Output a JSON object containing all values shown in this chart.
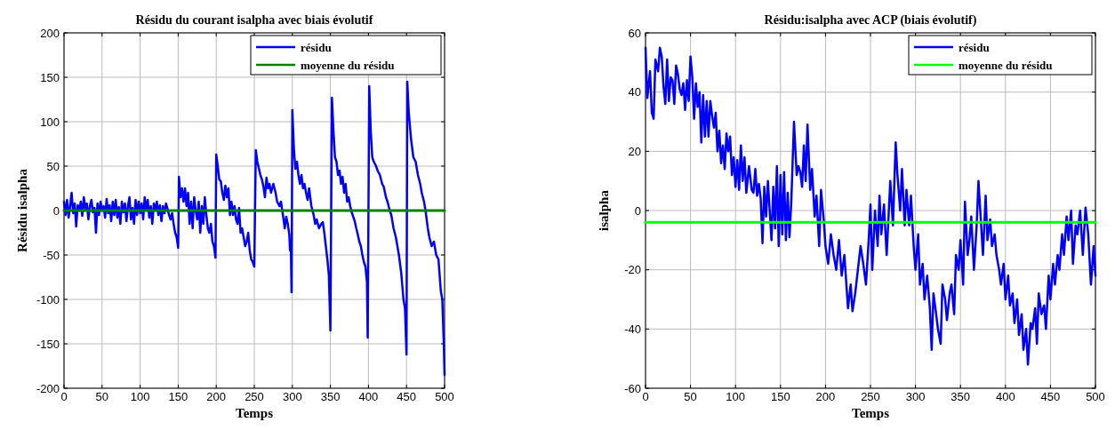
{
  "chart_data": [
    {
      "type": "line",
      "title": "Résidu du courant isalpha avec biais évolutif",
      "xlabel": "Temps",
      "ylabel": "Résidu isalpha",
      "xlim": [
        0,
        500
      ],
      "ylim": [
        -200,
        200
      ],
      "xticks": [
        0,
        50,
        100,
        150,
        200,
        250,
        300,
        350,
        400,
        450,
        500
      ],
      "yticks": [
        -200,
        -150,
        -100,
        -50,
        0,
        50,
        100,
        150,
        200
      ],
      "grid": true,
      "legend": "top right",
      "line_style": "solid",
      "series": [
        {
          "name": "résidu",
          "color": "#0000ff",
          "x": [
            0,
            2,
            4,
            6,
            8,
            10,
            12,
            14,
            16,
            18,
            20,
            22,
            24,
            26,
            28,
            30,
            32,
            34,
            36,
            38,
            40,
            42,
            44,
            46,
            48,
            50,
            52,
            54,
            56,
            58,
            60,
            62,
            64,
            66,
            68,
            70,
            72,
            74,
            76,
            78,
            80,
            82,
            84,
            86,
            88,
            90,
            92,
            94,
            96,
            98,
            100,
            102,
            104,
            106,
            108,
            110,
            112,
            114,
            116,
            118,
            120,
            122,
            124,
            126,
            128,
            130,
            132,
            134,
            136,
            138,
            140,
            142,
            144,
            146,
            148,
            150,
            151,
            153,
            155,
            157,
            159,
            161,
            163,
            165,
            167,
            169,
            171,
            173,
            175,
            177,
            179,
            181,
            183,
            185,
            187,
            189,
            191,
            193,
            195,
            197,
            199,
            200,
            202,
            204,
            206,
            208,
            210,
            212,
            214,
            216,
            218,
            220,
            222,
            224,
            226,
            228,
            230,
            232,
            234,
            236,
            238,
            240,
            242,
            244,
            246,
            248,
            250,
            252,
            254,
            258,
            260,
            262,
            264,
            266,
            268,
            270,
            272,
            275,
            278,
            280,
            283,
            285,
            288,
            290,
            292,
            294,
            296,
            297,
            298,
            299,
            300,
            302,
            304,
            306,
            308,
            310,
            312,
            314,
            316,
            318,
            320,
            322,
            325,
            328,
            330,
            332,
            335,
            338,
            340,
            342,
            344,
            346,
            348,
            350,
            352,
            354,
            356,
            358,
            360,
            362,
            364,
            366,
            368,
            370,
            372,
            374,
            376,
            378,
            380,
            382,
            384,
            386,
            388,
            390,
            392,
            394,
            396,
            398,
            399,
            401,
            403,
            405,
            407,
            410,
            412,
            415,
            418,
            420,
            423,
            425,
            428,
            430,
            433,
            436,
            440,
            443,
            446,
            448,
            450,
            451,
            453,
            456,
            459,
            462,
            465,
            468,
            470,
            473,
            475,
            478,
            480,
            483,
            486,
            489,
            492,
            495,
            497,
            499,
            500
          ],
          "values": [
            10,
            -5,
            12,
            -8,
            5,
            20,
            -3,
            8,
            -18,
            6,
            0,
            10,
            -6,
            15,
            2,
            8,
            -10,
            5,
            12,
            -2,
            3,
            -25,
            8,
            -5,
            10,
            0,
            5,
            -8,
            13,
            -3,
            6,
            -12,
            10,
            -5,
            12,
            -8,
            4,
            -15,
            10,
            -2,
            8,
            -12,
            5,
            15,
            -10,
            3,
            -15,
            12,
            -5,
            10,
            -3,
            8,
            -10,
            15,
            0,
            12,
            -8,
            5,
            -15,
            8,
            0,
            10,
            -5,
            6,
            -12,
            5,
            -3,
            8,
            2,
            -5,
            -10,
            -3,
            -15,
            -25,
            -30,
            -42,
            38,
            15,
            25,
            10,
            25,
            5,
            20,
            -15,
            10,
            -20,
            15,
            0,
            -10,
            10,
            -25,
            5,
            -15,
            15,
            -5,
            -20,
            -25,
            -15,
            -35,
            -40,
            -53,
            63,
            50,
            35,
            33,
            20,
            12,
            28,
            15,
            25,
            -5,
            10,
            -5,
            5,
            -10,
            -15,
            3,
            -25,
            -20,
            -30,
            -40,
            -35,
            -25,
            -45,
            -55,
            -58,
            -63,
            68,
            55,
            40,
            35,
            27,
            15,
            37,
            25,
            30,
            20,
            30,
            20,
            10,
            5,
            10,
            -7,
            -20,
            -7,
            -15,
            -27,
            -45,
            -40,
            -92,
            113,
            70,
            47,
            55,
            40,
            30,
            40,
            25,
            30,
            20,
            12,
            25,
            5,
            -5,
            -15,
            -10,
            -20,
            -15,
            -13,
            -25,
            -40,
            -55,
            -73,
            -135,
            127,
            90,
            60,
            55,
            40,
            45,
            30,
            38,
            20,
            30,
            10,
            15,
            5,
            -2,
            -7,
            -12,
            -20,
            -27,
            -35,
            -40,
            -50,
            -58,
            -63,
            -80,
            -143,
            140,
            90,
            60,
            55,
            50,
            45,
            40,
            30,
            27,
            15,
            10,
            0,
            -5,
            -20,
            -30,
            -50,
            -70,
            -100,
            -110,
            -162,
            145,
            110,
            80,
            60,
            55,
            40,
            30,
            20,
            10,
            0,
            -20,
            -30,
            -40,
            -35,
            -50,
            -55,
            -90,
            -100,
            -150,
            -185
          ]
        },
        {
          "name": "moyenne du résidu",
          "color": "#008000",
          "x": [
            0,
            500
          ],
          "values": [
            0,
            0
          ]
        }
      ]
    },
    {
      "type": "line",
      "title": "Résidu:isalpha avec ACP (biais évolutif)",
      "xlabel": "Temps",
      "ylabel": "isalpha",
      "xlim": [
        0,
        500
      ],
      "ylim": [
        -60,
        60
      ],
      "xticks": [
        0,
        50,
        100,
        150,
        200,
        250,
        300,
        350,
        400,
        450,
        500
      ],
      "yticks": [
        -60,
        -40,
        -20,
        0,
        20,
        40,
        60
      ],
      "grid": true,
      "legend": "top right",
      "line_style": "solid",
      "series": [
        {
          "name": "résidu",
          "color": "#0000ff",
          "x": [
            0,
            2,
            5,
            7,
            9,
            11,
            14,
            16,
            18,
            20,
            22,
            24,
            26,
            28,
            30,
            32,
            34,
            36,
            38,
            40,
            42,
            44,
            46,
            48,
            50,
            52,
            54,
            56,
            58,
            60,
            62,
            64,
            66,
            68,
            70,
            72,
            74,
            76,
            78,
            80,
            82,
            84,
            86,
            88,
            90,
            92,
            94,
            96,
            98,
            100,
            102,
            104,
            106,
            108,
            110,
            112,
            115,
            118,
            120,
            122,
            124,
            126,
            128,
            130,
            132,
            134,
            136,
            138,
            140,
            142,
            144,
            146,
            148,
            150,
            152,
            154,
            156,
            158,
            160,
            162,
            165,
            168,
            170,
            172,
            174,
            176,
            178,
            180,
            183,
            185,
            188,
            190,
            193,
            195,
            198,
            200,
            203,
            206,
            209,
            212,
            215,
            218,
            221,
            225,
            228,
            230,
            233,
            236,
            239,
            242,
            245,
            248,
            250,
            252,
            255,
            258,
            260,
            262,
            265,
            268,
            272,
            275,
            278,
            280,
            283,
            285,
            288,
            290,
            293,
            295,
            298,
            300,
            303,
            305,
            308,
            310,
            313,
            316,
            318,
            320,
            323,
            325,
            328,
            330,
            333,
            335,
            338,
            340,
            343,
            345,
            348,
            350,
            353,
            355,
            358,
            360,
            362,
            365,
            368,
            370,
            373,
            375,
            378,
            380,
            383,
            385,
            388,
            390,
            393,
            395,
            398,
            400,
            403,
            405,
            408,
            410,
            413,
            415,
            418,
            420,
            423,
            425,
            428,
            430,
            433,
            435,
            437,
            440,
            443,
            445,
            448,
            450,
            453,
            455,
            458,
            460,
            463,
            465,
            468,
            470,
            473,
            475,
            478,
            480,
            483,
            486,
            489,
            492,
            495,
            498,
            500
          ],
          "values": [
            55,
            38,
            47,
            33,
            31,
            51,
            47,
            55,
            52,
            42,
            36,
            51,
            37,
            45,
            44,
            36,
            49,
            46,
            41,
            39,
            43,
            34,
            44,
            37,
            52,
            45,
            31,
            43,
            35,
            40,
            23,
            39,
            25,
            37,
            25,
            37,
            32,
            28,
            33,
            20,
            27,
            16,
            22,
            14,
            26,
            20,
            25,
            12,
            18,
            8,
            17,
            7,
            22,
            10,
            18,
            6,
            15,
            7,
            6,
            14,
            5,
            9,
            4,
            -11,
            8,
            -2,
            10,
            0,
            -10,
            8,
            -6,
            15,
            -12,
            12,
            -8,
            13,
            -10,
            6,
            -9,
            3,
            30,
            12,
            15,
            13,
            8,
            22,
            10,
            29,
            7,
            14,
            -2,
            5,
            -12,
            7,
            -3,
            -12,
            -18,
            -8,
            -15,
            -20,
            -10,
            -22,
            -15,
            -33,
            -25,
            -34,
            -28,
            -20,
            -12,
            -18,
            -25,
            -10,
            2,
            -20,
            0,
            -12,
            5,
            -8,
            2,
            -15,
            10,
            -5,
            23,
            12,
            0,
            14,
            -5,
            7,
            -5,
            5,
            -12,
            -20,
            -8,
            -25,
            -18,
            -30,
            -22,
            -33,
            -47,
            -28,
            -35,
            -40,
            -45,
            -25,
            -30,
            -37,
            -28,
            -25,
            -35,
            -15,
            -20,
            -10,
            -25,
            3,
            -15,
            -10,
            -2,
            -20,
            -5,
            10,
            -5,
            -15,
            5,
            -10,
            -3,
            -12,
            -8,
            -15,
            -20,
            -25,
            -18,
            -30,
            -22,
            -32,
            -28,
            -38,
            -30,
            -42,
            -35,
            -47,
            -40,
            -52,
            -38,
            -40,
            -33,
            -45,
            -28,
            -35,
            -32,
            -40,
            -22,
            -30,
            -18,
            -25,
            -15,
            -20,
            -8,
            -15,
            -2,
            -10,
            0,
            -18,
            -5,
            -8,
            0,
            -15,
            1,
            -8,
            -25,
            -12,
            -22
          ]
        },
        {
          "name": "moyenne du résidu",
          "color": "#00ff00",
          "x": [
            0,
            500
          ],
          "values": [
            -4,
            -4
          ]
        }
      ]
    }
  ]
}
